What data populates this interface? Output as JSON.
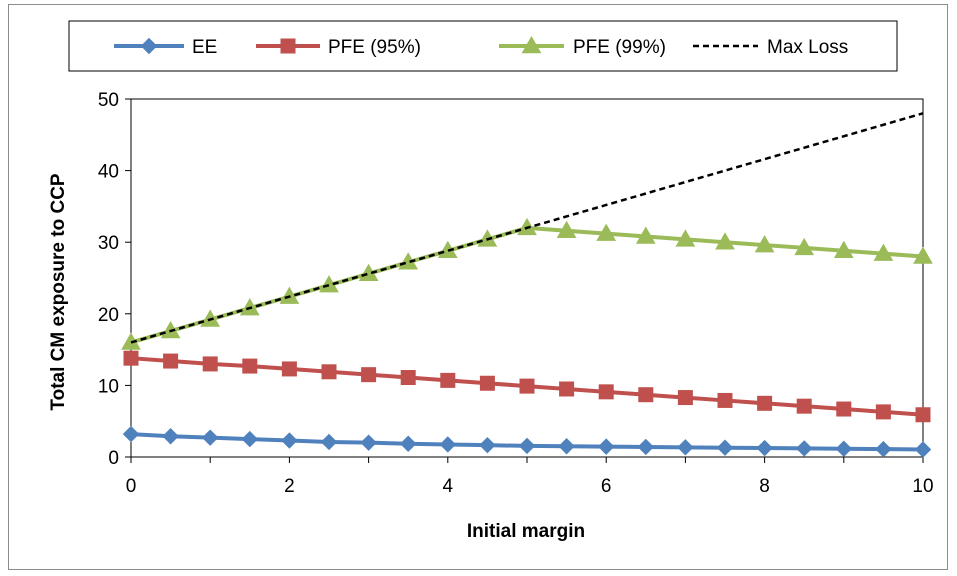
{
  "chart_data": {
    "type": "line",
    "xlabel": "Initial margin",
    "ylabel": "Total CM exposure to CCP",
    "xlim": [
      0,
      10
    ],
    "ylim": [
      0,
      50
    ],
    "x_ticks": [
      0,
      2,
      4,
      6,
      8,
      10
    ],
    "y_ticks": [
      0,
      10,
      20,
      30,
      40,
      50
    ],
    "grid": false,
    "legend_position": "top",
    "x": [
      0,
      0.5,
      1,
      1.5,
      2,
      2.5,
      3,
      3.5,
      4,
      4.5,
      5,
      5.5,
      6,
      6.5,
      7,
      7.5,
      8,
      8.5,
      9,
      9.5,
      10
    ],
    "series": [
      {
        "name": "EE",
        "color": "#4F81BD",
        "marker": "diamond",
        "dashed": false,
        "x": [
          0,
          0.5,
          1,
          1.5,
          2,
          2.5,
          3,
          3.5,
          4,
          4.5,
          5,
          5.5,
          6,
          6.5,
          7,
          7.5,
          8,
          8.5,
          9,
          9.5,
          10
        ],
        "values": [
          3.2,
          2.9,
          2.7,
          2.5,
          2.3,
          2.1,
          2.0,
          1.85,
          1.75,
          1.65,
          1.55,
          1.5,
          1.45,
          1.4,
          1.35,
          1.3,
          1.25,
          1.2,
          1.15,
          1.1,
          1.05
        ]
      },
      {
        "name": "PFE (95%)",
        "color": "#C0504D",
        "marker": "square",
        "dashed": false,
        "x": [
          0,
          0.5,
          1,
          1.5,
          2,
          2.5,
          3,
          3.5,
          4,
          4.5,
          5,
          5.5,
          6,
          6.5,
          7,
          7.5,
          8,
          8.5,
          9,
          9.5,
          10
        ],
        "values": [
          13.8,
          13.4,
          13.0,
          12.7,
          12.3,
          11.9,
          11.5,
          11.1,
          10.7,
          10.3,
          9.9,
          9.5,
          9.1,
          8.7,
          8.3,
          7.9,
          7.5,
          7.1,
          6.7,
          6.3,
          5.9
        ]
      },
      {
        "name": "PFE (99%)",
        "color": "#9BBB59",
        "marker": "triangle",
        "dashed": false,
        "x": [
          0,
          0.5,
          1,
          1.5,
          2,
          2.5,
          3,
          3.5,
          4,
          4.5,
          5,
          5.5,
          6,
          6.5,
          7,
          7.5,
          8,
          8.5,
          9,
          9.5,
          10
        ],
        "values": [
          16.0,
          17.6,
          19.2,
          20.8,
          22.4,
          24.0,
          25.6,
          27.2,
          28.8,
          30.4,
          32.0,
          31.6,
          31.2,
          30.8,
          30.4,
          30.0,
          29.6,
          29.2,
          28.8,
          28.4,
          28.0
        ]
      },
      {
        "name": "Max Loss",
        "color": "#000000",
        "marker": "none",
        "dashed": true,
        "x": [
          0,
          10
        ],
        "values": [
          16.0,
          48.0
        ]
      }
    ]
  }
}
